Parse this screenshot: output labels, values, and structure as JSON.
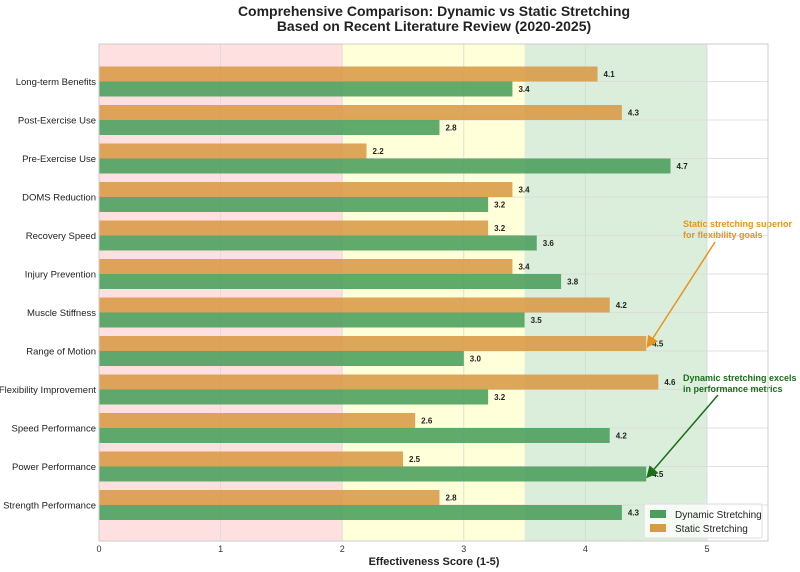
{
  "chart_data": {
    "type": "bar",
    "orientation": "horizontal",
    "title": "Comprehensive Comparison: Dynamic vs Static Stretching",
    "subtitle": "Based on Recent Literature Review (2020-2025)",
    "xlabel": "Effectiveness Score (1-5)",
    "ylabel": "",
    "xlim": [
      0,
      5.5
    ],
    "xticks": [
      "0",
      "1",
      "2",
      "3",
      "4",
      "5"
    ],
    "grid": true,
    "legend_position": "bottom-right",
    "categories": [
      "Strength Performance",
      "Power Performance",
      "Speed Performance",
      "Flexibility Improvement",
      "Range of Motion",
      "Muscle Stiffness",
      "Injury Prevention",
      "Recovery Speed",
      "DOMS Reduction",
      "Pre-Exercise Use",
      "Post-Exercise Use",
      "Long-term Benefits"
    ],
    "series": [
      {
        "name": "Dynamic Stretching",
        "color": "#4a9e5c",
        "values": [
          4.3,
          4.5,
          4.2,
          3.2,
          3.0,
          3.5,
          3.8,
          3.6,
          3.2,
          4.7,
          2.8,
          3.4
        ],
        "labels": [
          "4.3",
          "4.5",
          "4.2",
          "3.2",
          "3.0",
          "3.5",
          "3.8",
          "3.6",
          "3.2",
          "4.7",
          "2.8",
          "3.4"
        ]
      },
      {
        "name": "Static Stretching",
        "color": "#d99a45",
        "values": [
          2.8,
          2.5,
          2.6,
          4.6,
          4.5,
          4.2,
          3.4,
          3.2,
          3.4,
          2.2,
          4.3,
          4.1
        ],
        "labels": [
          "2.8",
          "2.5",
          "2.6",
          "4.6",
          "4.5",
          "4.2",
          "3.4",
          "3.2",
          "3.4",
          "2.2",
          "4.3",
          "4.1"
        ]
      }
    ],
    "background_zones": [
      {
        "from": 0,
        "to": 2,
        "color": "#ffd6d6"
      },
      {
        "from": 2,
        "to": 3.5,
        "color": "#ffffcc"
      },
      {
        "from": 3.5,
        "to": 5,
        "color": "#cfe8cf"
      }
    ],
    "annotations": [
      {
        "text_lines": [
          "Static stretching superior",
          "for flexibility goals"
        ],
        "color": "#e8931e",
        "target_x": 4.5,
        "target_category": "Range of Motion",
        "target_series": "Static Stretching"
      },
      {
        "text_lines": [
          "Dynamic stretching excels",
          "in performance metrics"
        ],
        "color": "#1a6e1a",
        "target_x": 4.5,
        "target_category": "Power Performance",
        "target_series": "Dynamic Stretching"
      }
    ]
  }
}
